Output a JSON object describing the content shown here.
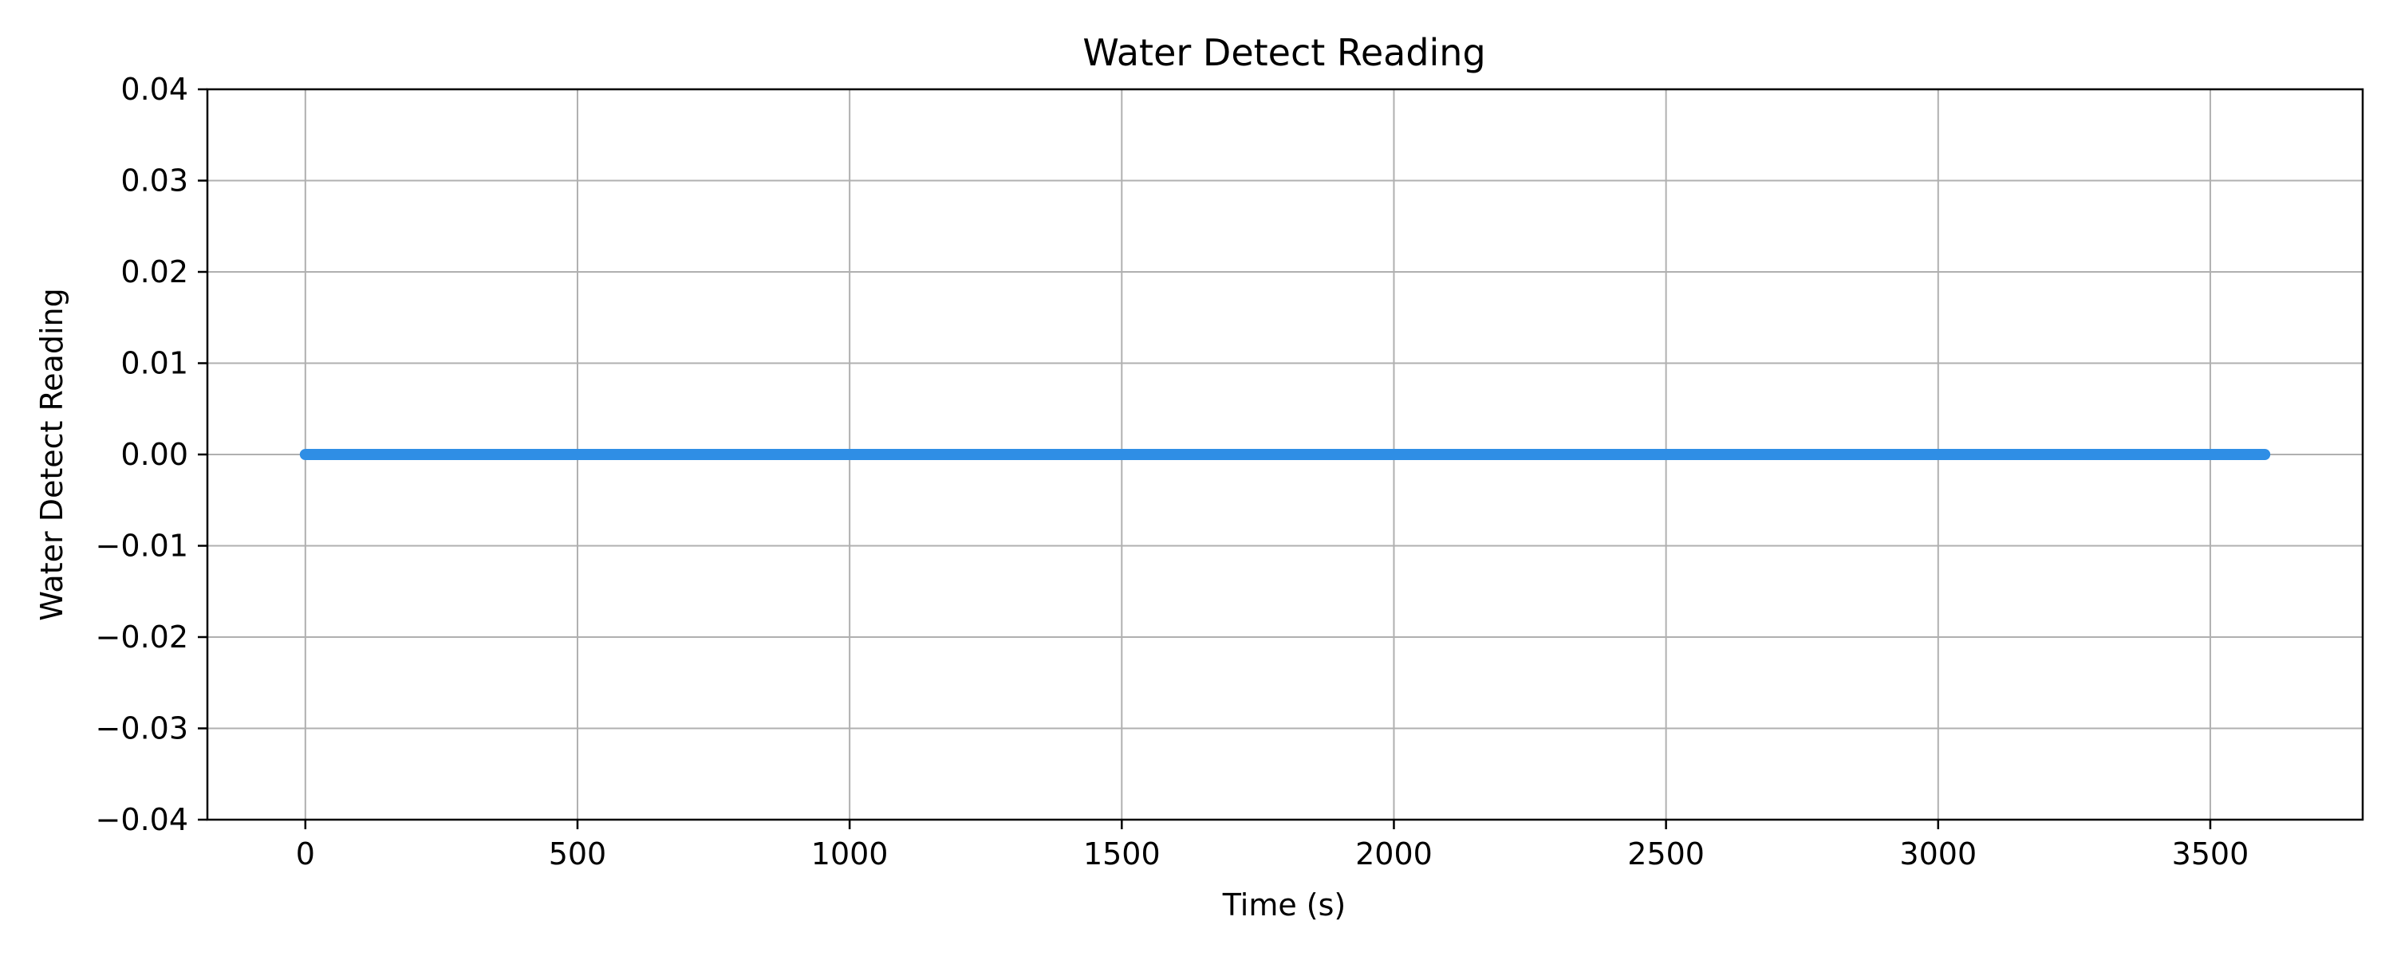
{
  "chart_data": {
    "type": "line",
    "title": "Water Detect Reading",
    "xlabel": "Time (s)",
    "ylabel": "Water Detect Reading",
    "xlim": [
      -180,
      3780
    ],
    "ylim": [
      -0.04,
      0.04
    ],
    "x_ticks": [
      0,
      500,
      1000,
      1500,
      2000,
      2500,
      3000,
      3500
    ],
    "x_tick_labels": [
      "0",
      "500",
      "1000",
      "1500",
      "2000",
      "2500",
      "3000",
      "3500"
    ],
    "y_ticks": [
      -0.04,
      -0.03,
      -0.02,
      -0.01,
      0.0,
      0.01,
      0.02,
      0.03,
      0.04
    ],
    "y_tick_labels": [
      "−0.04",
      "−0.03",
      "−0.02",
      "−0.01",
      "0.00",
      "0.01",
      "0.02",
      "0.03",
      "0.04"
    ],
    "grid": true,
    "series": [
      {
        "color": "#2f8ee5",
        "x": [
          0,
          500,
          1000,
          1500,
          2000,
          2500,
          3000,
          3600
        ],
        "y": [
          0,
          0,
          0,
          0,
          0,
          0,
          0,
          0
        ]
      }
    ]
  }
}
